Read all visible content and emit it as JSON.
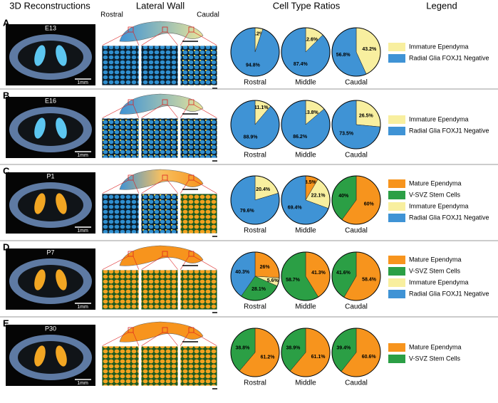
{
  "headers": [
    "3D Reconstructions",
    "Lateral Wall",
    "Cell Type Ratios",
    "Legend"
  ],
  "lateral_labels": [
    "Rostral",
    "Caudal"
  ],
  "scale_label": "1mm",
  "rows": [
    {
      "letter": "A",
      "stage": "E13",
      "legend": [
        {
          "name": "Immature Ependyma",
          "color": "#f8ef9f"
        },
        {
          "name": "Radial Glia FOXJ1 Negative",
          "color": "#3f93d5"
        }
      ]
    },
    {
      "letter": "B",
      "stage": "E16",
      "legend": [
        {
          "name": "Immature Ependyma",
          "color": "#f8ef9f"
        },
        {
          "name": "Radial Glia FOXJ1 Negative",
          "color": "#3f93d5"
        }
      ]
    },
    {
      "letter": "C",
      "stage": "P1",
      "legend": [
        {
          "name": "Mature Ependyma",
          "color": "#f7941d"
        },
        {
          "name": "V-SVZ Stem Cells",
          "color": "#2b9f45"
        },
        {
          "name": "Immature Ependyma",
          "color": "#f8ef9f"
        },
        {
          "name": "Radial Glia FOXJ1 Negative",
          "color": "#3f93d5"
        }
      ]
    },
    {
      "letter": "D",
      "stage": "P7",
      "legend": [
        {
          "name": "Mature Ependyma",
          "color": "#f7941d"
        },
        {
          "name": "V-SVZ Stem Cells",
          "color": "#2b9f45"
        },
        {
          "name": "Immature Ependyma",
          "color": "#f8ef9f"
        },
        {
          "name": "Radial Glia FOXJ1 Negative",
          "color": "#3f93d5"
        }
      ]
    },
    {
      "letter": "E",
      "stage": "P30",
      "legend": [
        {
          "name": "Mature Ependyma",
          "color": "#f7941d"
        },
        {
          "name": "V-SVZ Stem Cells",
          "color": "#2b9f45"
        }
      ]
    }
  ],
  "chart_data": [
    {
      "type": "pie",
      "title": "Rostral",
      "values": [
        5.2,
        94.8
      ],
      "value_labels": [
        "5.2%",
        "94.8%"
      ],
      "colors": [
        "#f8ef9f",
        "#3f93d5"
      ]
    },
    {
      "type": "pie",
      "title": "Middle",
      "values": [
        12.6,
        87.4
      ],
      "value_labels": [
        "12.6%",
        "87.4%"
      ],
      "colors": [
        "#f8ef9f",
        "#3f93d5"
      ]
    },
    {
      "type": "pie",
      "title": "Caudal",
      "values": [
        43.2,
        56.8
      ],
      "value_labels": [
        "43.2%",
        "56.8%"
      ],
      "colors": [
        "#f8ef9f",
        "#3f93d5"
      ]
    },
    {
      "type": "pie",
      "title": "Rostral",
      "values": [
        11.1,
        88.9
      ],
      "value_labels": [
        "11.1%",
        "88.9%"
      ],
      "colors": [
        "#f8ef9f",
        "#3f93d5"
      ]
    },
    {
      "type": "pie",
      "title": "Middle",
      "values": [
        13.8,
        86.2
      ],
      "value_labels": [
        "13.8%",
        "86.2%"
      ],
      "colors": [
        "#f8ef9f",
        "#3f93d5"
      ]
    },
    {
      "type": "pie",
      "title": "Caudal",
      "values": [
        26.5,
        73.5
      ],
      "value_labels": [
        "26.5%",
        "73.5%"
      ],
      "colors": [
        "#f8ef9f",
        "#3f93d5"
      ]
    },
    {
      "type": "pie",
      "title": "Rostral",
      "values": [
        20.4,
        79.6
      ],
      "value_labels": [
        "20.4%",
        "79.6%"
      ],
      "colors": [
        "#f8ef9f",
        "#3f93d5"
      ]
    },
    {
      "type": "pie",
      "title": "Middle",
      "values": [
        8.5,
        22.1,
        69.4
      ],
      "value_labels": [
        "8.5%",
        "22.1%",
        "69.4%"
      ],
      "colors": [
        "#f7941d",
        "#f8ef9f",
        "#3f93d5"
      ]
    },
    {
      "type": "pie",
      "title": "Caudal",
      "values": [
        60,
        40
      ],
      "value_labels": [
        "60%",
        "40%"
      ],
      "colors": [
        "#f7941d",
        "#2b9f45"
      ]
    },
    {
      "type": "pie",
      "title": "Rostral",
      "values": [
        26,
        5.6,
        28.1,
        40.3
      ],
      "value_labels": [
        "26%",
        "5.6%",
        "28.1%",
        "40.3%"
      ],
      "colors": [
        "#f7941d",
        "#f8ef9f",
        "#2b9f45",
        "#3f93d5"
      ]
    },
    {
      "type": "pie",
      "title": "Middle",
      "values": [
        41.3,
        58.7
      ],
      "value_labels": [
        "41.3%",
        "58.7%"
      ],
      "colors": [
        "#f7941d",
        "#2b9f45"
      ]
    },
    {
      "type": "pie",
      "title": "Caudal",
      "values": [
        58.4,
        41.6
      ],
      "value_labels": [
        "58.4%",
        "41.6%"
      ],
      "colors": [
        "#f7941d",
        "#2b9f45"
      ]
    },
    {
      "type": "pie",
      "title": "Rostral",
      "values": [
        61.2,
        38.8
      ],
      "value_labels": [
        "61.2%",
        "38.8%"
      ],
      "colors": [
        "#f7941d",
        "#2b9f45"
      ]
    },
    {
      "type": "pie",
      "title": "Middle",
      "values": [
        61.1,
        38.9
      ],
      "value_labels": [
        "61.1%",
        "38.9%"
      ],
      "colors": [
        "#f7941d",
        "#2b9f45"
      ]
    },
    {
      "type": "pie",
      "title": "Caudal",
      "values": [
        60.6,
        39.4
      ],
      "value_labels": [
        "60.6%",
        "39.4%"
      ],
      "colors": [
        "#f7941d",
        "#2b9f45"
      ]
    }
  ]
}
